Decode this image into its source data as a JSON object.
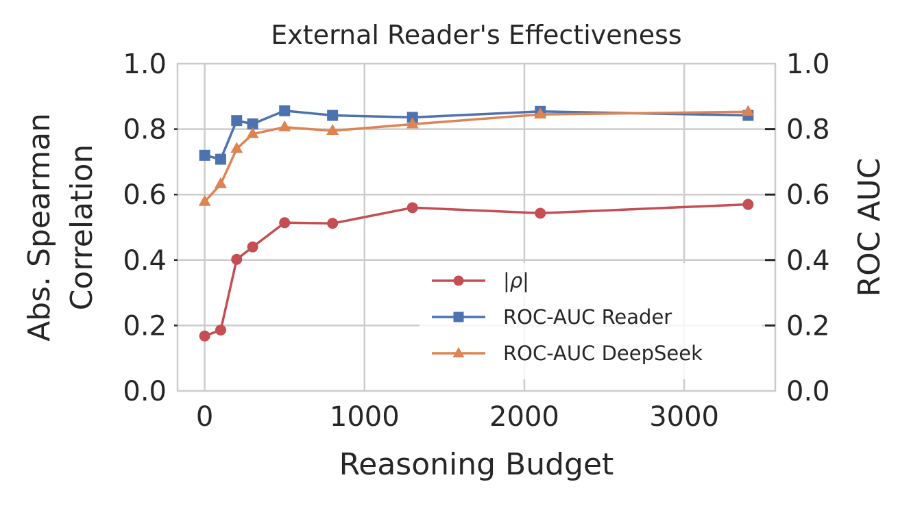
{
  "chart_data": {
    "type": "line",
    "title": "External Reader's Effectiveness",
    "xlabel": "Reasoning Budget",
    "ylabel_left_line1": "Abs. Spearman",
    "ylabel_left_line2": "Correlation",
    "ylabel_right": "ROC AUC",
    "xlim": [
      -170,
      3570
    ],
    "ylim": [
      0,
      1
    ],
    "y2lim": [
      0,
      1
    ],
    "xticks": [
      0,
      1000,
      2000,
      3000
    ],
    "xtick_labels": [
      "0",
      "1000",
      "2000",
      "3000"
    ],
    "yticks": [
      0,
      0.2,
      0.4,
      0.6,
      0.8,
      1.0
    ],
    "ytick_labels": [
      "0.0",
      "0.2",
      "0.4",
      "0.6",
      "0.8",
      "1.0"
    ],
    "y2tick_labels": [
      "0.0",
      "0.2",
      "0.4",
      "0.6",
      "0.8",
      "1.0"
    ],
    "grid": true,
    "legend_position": "lower-right",
    "x": [
      0,
      100,
      200,
      300,
      500,
      800,
      1300,
      2100,
      3400
    ],
    "series": [
      {
        "name": "|ρ|",
        "axis": "left",
        "marker": "circle",
        "color": "#c44e52",
        "values": [
          0.168,
          0.186,
          0.402,
          0.44,
          0.514,
          0.512,
          0.56,
          0.543,
          0.57
        ]
      },
      {
        "name": "ROC-AUC Reader",
        "axis": "right",
        "marker": "square",
        "color": "#4c72b0",
        "values": [
          0.72,
          0.708,
          0.826,
          0.816,
          0.856,
          0.842,
          0.836,
          0.854,
          0.842
        ]
      },
      {
        "name": "ROC-AUC DeepSeek",
        "axis": "right",
        "marker": "triangle",
        "color": "#dd8452",
        "values": [
          0.578,
          0.632,
          0.74,
          0.785,
          0.806,
          0.795,
          0.815,
          0.845,
          0.853
        ]
      }
    ]
  }
}
